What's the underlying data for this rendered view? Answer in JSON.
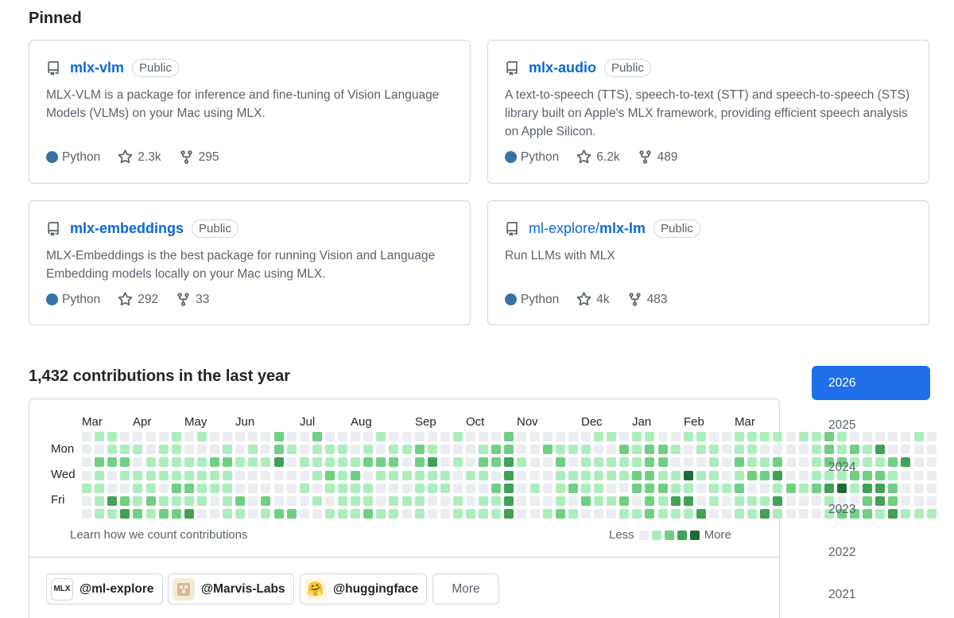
{
  "pinned": {
    "title": "Pinned",
    "repos": [
      {
        "name": "mlx-vlm",
        "visibility": "Public",
        "description": "MLX-VLM is a package for inference and fine-tuning of Vision Language Models (VLMs) on your Mac using MLX.",
        "language": "Python",
        "stars": "2.3k",
        "forks": "295"
      },
      {
        "name": "mlx-audio",
        "visibility": "Public",
        "description": "A text-to-speech (TTS), speech-to-text (STT) and speech-to-speech (STS) library built on Apple's MLX framework, providing efficient speech analysis on Apple Silicon.",
        "language": "Python",
        "stars": "6.2k",
        "forks": "489"
      },
      {
        "name": "mlx-embeddings",
        "visibility": "Public",
        "description": "MLX-Embeddings is the best package for running Vision and Language Embedding models locally on your Mac using MLX.",
        "language": "Python",
        "stars": "292",
        "forks": "33"
      },
      {
        "owner": "ml-explore/",
        "name": "mlx-lm",
        "visibility": "Public",
        "description": "Run LLMs with MLX",
        "language": "Python",
        "stars": "4k",
        "forks": "483"
      }
    ],
    "language_color": "#3572A5"
  },
  "contributions": {
    "title": "1,432 contributions in the last year",
    "months": [
      "Mar",
      "Apr",
      "May",
      "Jun",
      "Jul",
      "Aug",
      "Sep",
      "Oct",
      "Nov",
      "Dec",
      "Jan",
      "Feb",
      "Mar"
    ],
    "day_labels": [
      "Mon",
      "Wed",
      "Fri"
    ],
    "learn_link": "Learn how we count contributions",
    "legend_less": "Less",
    "legend_more": "More",
    "level_colors": [
      "#ebedf0",
      "#aceebb",
      "#6fd082",
      "#3fa256",
      "#1e6a35"
    ],
    "grid_levels": [
      "0110000101000002002000010000010002000000110110011001111011210000010",
      "0011101100010102101110101121000122002111002122101101100001212130000",
      "0222011111221113011111222023010223100201111122000102112001221112300",
      "0101111111110000001212011111101103000111111221141101223001112221000",
      "1100110221110000010111100011100023010121100222110112001212341332000",
      "0132121111012020001011101110010113000102112021330101113000100232000",
      "0113212230011012200111211010011113001210001121113001131000122213111"
    ],
    "orgs": [
      {
        "label": "@ml-explore",
        "avatar_text": "MLX"
      },
      {
        "label": "@Marvis-Labs",
        "avatar_text": ""
      },
      {
        "label": "@huggingface",
        "avatar_text": "🤗"
      }
    ],
    "more_label": "More"
  },
  "years": [
    "2026",
    "2025",
    "2024",
    "2023",
    "2022",
    "2021"
  ],
  "active_year": "2026"
}
